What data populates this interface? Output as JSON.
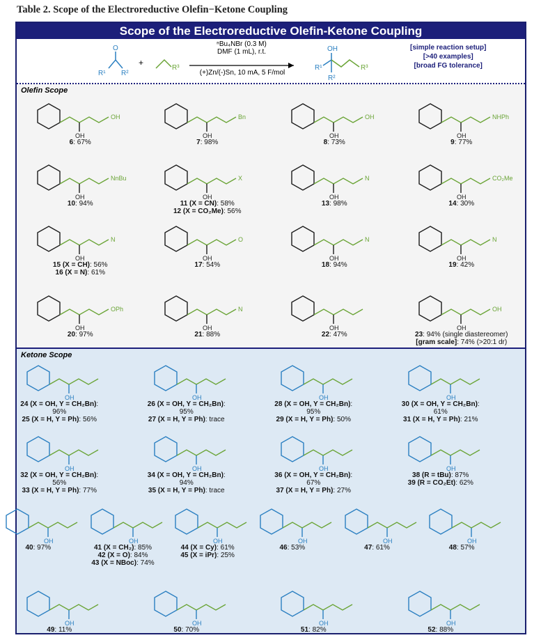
{
  "table_title": "Table 2. Scope of the Electroreductive Olefin−Ketone Coupling",
  "banner": "Scope of the Electroreductive Olefin-Ketone Coupling",
  "reaction": {
    "conditions_top": [
      "ⁿBu₄NBr (0.3 M)",
      "DMF (1 mL), r.t."
    ],
    "conditions_bottom": "(+)Zn/(-)Sn, 10 mA, 5 F/mol",
    "ketone_labels": [
      "O",
      "R¹",
      "R²"
    ],
    "olefin_label": "R³",
    "plus": "+",
    "product_labels": [
      "OH",
      "R¹",
      "R²",
      "R³"
    ],
    "features": [
      "[simple reaction setup]",
      "[>40 examples]",
      "[broad FG tolerance]"
    ]
  },
  "colors": {
    "banner": "#1c1f7a",
    "ketone_part": "#2a7fc1",
    "olefin_part": "#6aa436",
    "olefin_bg": "#f4f4f4",
    "ketone_bg": "#dde9f4"
  },
  "olefin_scope": {
    "label": "Olefin Scope",
    "items": [
      {
        "lines": [
          [
            "6",
            ": 67%"
          ]
        ],
        "group": "OH"
      },
      {
        "lines": [
          [
            "7",
            ": 98%"
          ]
        ],
        "group": "Bn"
      },
      {
        "lines": [
          [
            "8",
            ": 73%"
          ]
        ],
        "group": "OH"
      },
      {
        "lines": [
          [
            "9",
            ": 77%"
          ]
        ],
        "group": "NHPh"
      },
      {
        "lines": [
          [
            "10",
            ": 94%"
          ]
        ],
        "group": "NnBu"
      },
      {
        "lines": [
          [
            "11 (X = CN)",
            ": 58%"
          ],
          [
            "12 (X = CO₂Me)",
            ": 56%"
          ]
        ],
        "group": "X"
      },
      {
        "lines": [
          [
            "13",
            ": 98%"
          ]
        ],
        "group": "N"
      },
      {
        "lines": [
          [
            "14",
            ": 30%"
          ]
        ],
        "group": "CO₂Me"
      },
      {
        "lines": [
          [
            "15 (X = CH)",
            ": 56%"
          ],
          [
            "16 (X = N)",
            ": 61%"
          ]
        ],
        "group": "N"
      },
      {
        "lines": [
          [
            "17",
            ": 54%"
          ]
        ],
        "group": "O"
      },
      {
        "lines": [
          [
            "18",
            ": 94%"
          ]
        ],
        "group": "N"
      },
      {
        "lines": [
          [
            "19",
            ": 42%"
          ]
        ],
        "group": "N"
      },
      {
        "lines": [
          [
            "20",
            ": 97%"
          ]
        ],
        "group": "OPh"
      },
      {
        "lines": [
          [
            "21",
            ": 88%"
          ]
        ],
        "group": "N"
      },
      {
        "lines": [
          [
            "22",
            ": 47%"
          ]
        ],
        "group": ""
      },
      {
        "lines": [
          [
            "23",
            ": 94% (single diastereomer)"
          ],
          [
            "[gram scale]",
            ": 74% (>20:1 dr)"
          ]
        ],
        "group": "OH"
      }
    ]
  },
  "ketone_scope": {
    "label": "Ketone Scope",
    "items": [
      {
        "lines": [
          [
            "24 (X = OH, Y = CH₂Bn)",
            ": 96%"
          ],
          [
            "25 (X = H, Y = Ph)",
            ": 56%"
          ]
        ]
      },
      {
        "lines": [
          [
            "26 (X = OH, Y = CH₂Bn)",
            ": 95%"
          ],
          [
            "27 (X = H, Y = Ph)",
            ": trace"
          ]
        ]
      },
      {
        "lines": [
          [
            "28 (X = OH, Y = CH₂Bn)",
            ": 95%"
          ],
          [
            "29 (X = H, Y = Ph)",
            ": 50%"
          ]
        ]
      },
      {
        "lines": [
          [
            "30 (X = OH, Y = CH₂Bn)",
            ": 61%"
          ],
          [
            "31 (X = H, Y = Ph)",
            ": 21%"
          ]
        ]
      },
      {
        "lines": [
          [
            "32 (X = OH, Y = CH₂Bn)",
            ": 56%"
          ],
          [
            "33 (X = H, Y = Ph)",
            ": 77%"
          ]
        ]
      },
      {
        "lines": [
          [
            "34 (X = OH, Y = CH₂Bn)",
            ": 94%"
          ],
          [
            "35 (X = H, Y = Ph)",
            ": trace"
          ]
        ]
      },
      {
        "lines": [
          [
            "36 (X = OH, Y = CH₂Bn)",
            ": 67%"
          ],
          [
            "37 (X = H, Y = Ph)",
            ": 27%"
          ]
        ]
      },
      {
        "lines": [
          [
            "38 (R = tBu)",
            ": 87%"
          ],
          [
            "39 (R = CO₂Et)",
            ": 62%"
          ]
        ]
      },
      {
        "lines": [
          [
            "40",
            ": 97%"
          ]
        ]
      },
      {
        "lines": [
          [
            "41 (X = CH₂)",
            ": 85%"
          ],
          [
            "42 (X = O)",
            ": 84%"
          ],
          [
            "43 (X = NBoc)",
            ": 74%"
          ]
        ]
      },
      {
        "lines": [
          [
            "44 (X = Cy)",
            ": 61%"
          ],
          [
            "45 (X = iPr)",
            ": 25%"
          ]
        ]
      },
      {
        "lines": [
          [
            "46",
            ": 53%"
          ]
        ]
      },
      {
        "lines": [
          [
            "47",
            ": 61%"
          ]
        ]
      },
      {
        "lines": [
          [
            "48",
            ": 57%"
          ]
        ]
      },
      {
        "lines": [
          [
            "49",
            ": 11%"
          ]
        ]
      },
      {
        "lines": [
          [
            "50",
            ": 70%"
          ]
        ]
      },
      {
        "lines": [
          [
            "51",
            ": 82%"
          ]
        ]
      },
      {
        "lines": [
          [
            "52",
            ": 88%"
          ]
        ]
      }
    ]
  }
}
